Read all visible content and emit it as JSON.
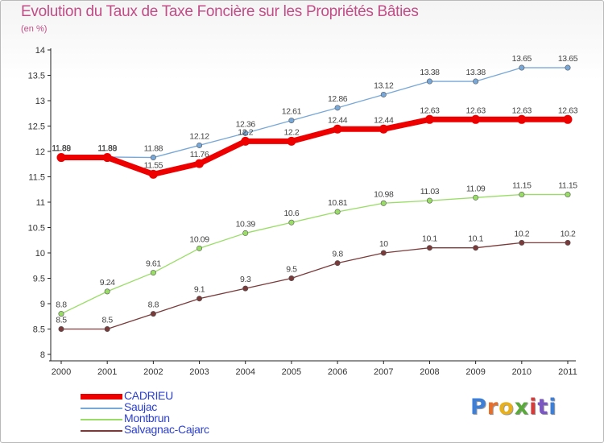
{
  "header": {
    "title": "Evolution du Taux de Taxe Foncière sur les Propriétés Bâties",
    "unit": "(en %)"
  },
  "logo": {
    "letters": [
      "P",
      "r",
      "o",
      "x",
      "i",
      "t",
      "i"
    ],
    "colors": [
      "#3d7fd6",
      "#e6702b",
      "#e8b11b",
      "#5aa93b",
      "#d43b3b",
      "#7a57c3",
      "#3d7fd6"
    ]
  },
  "chart_data": {
    "type": "line",
    "title": "Evolution du Taux de Taxe Foncière sur les Propriétés Bâties",
    "ylabel": "(en %)",
    "xlabel": "",
    "x": [
      "2000",
      "2001",
      "2002",
      "2003",
      "2004",
      "2005",
      "2006",
      "2007",
      "2008",
      "2009",
      "2010",
      "2011"
    ],
    "ylim": [
      8,
      14
    ],
    "yticks": [
      "8",
      "8.5",
      "9",
      "9.5",
      "10",
      "10.5",
      "11",
      "11.5",
      "12",
      "12.5",
      "13",
      "13.5",
      "14"
    ],
    "grid": false,
    "legend_position": "bottom-left",
    "series": [
      {
        "name": "Saujac",
        "color": "#78a8d8",
        "values": [
          11.89,
          11.89,
          11.88,
          12.12,
          12.36,
          12.61,
          12.86,
          13.12,
          13.38,
          13.38,
          13.65,
          13.65
        ],
        "labels": [
          "11.89",
          "11.89",
          "11.88",
          "12.12",
          "12.36",
          "12.61",
          "12.86",
          "13.12",
          "13.38",
          "13.38",
          "13.65",
          "13.65"
        ]
      },
      {
        "name": "CADRIEU",
        "color": "#ee0000",
        "values": [
          11.88,
          11.88,
          11.55,
          11.76,
          12.2,
          12.2,
          12.44,
          12.44,
          12.63,
          12.63,
          12.63,
          12.63
        ],
        "labels": [
          "11.88",
          "11.88",
          "11.55",
          "11.76",
          "12.2",
          "12.2",
          "12.44",
          "12.44",
          "12.63",
          "12.63",
          "12.63",
          "12.63"
        ]
      },
      {
        "name": "Montbrun",
        "color": "#99dd66",
        "values": [
          8.8,
          9.24,
          9.61,
          10.09,
          10.39,
          10.6,
          10.81,
          10.98,
          11.03,
          11.09,
          11.15,
          11.15
        ],
        "labels": [
          "8.8",
          "9.24",
          "9.61",
          "10.09",
          "10.39",
          "10.6",
          "10.81",
          "10.98",
          "11.03",
          "11.09",
          "11.15",
          "11.15"
        ]
      },
      {
        "name": "Salvagnac-Cajarc",
        "color": "#7a3a3a",
        "values": [
          8.5,
          8.5,
          8.8,
          9.1,
          9.3,
          9.5,
          9.8,
          10.0,
          10.1,
          10.1,
          10.2,
          10.2
        ],
        "labels": [
          "8.5",
          "8.5",
          "8.8",
          "9.1",
          "9.3",
          "9.5",
          "9.8",
          "10",
          "10.1",
          "10.1",
          "10.2",
          "10.2"
        ]
      }
    ],
    "legend": [
      {
        "name": "CADRIEU",
        "color": "#ee0000",
        "thick": true
      },
      {
        "name": "Saujac",
        "color": "#78a8d8",
        "thick": false
      },
      {
        "name": "Montbrun",
        "color": "#99dd66",
        "thick": false
      },
      {
        "name": "Salvagnac-Cajarc",
        "color": "#7a3a3a",
        "thick": false
      }
    ]
  }
}
